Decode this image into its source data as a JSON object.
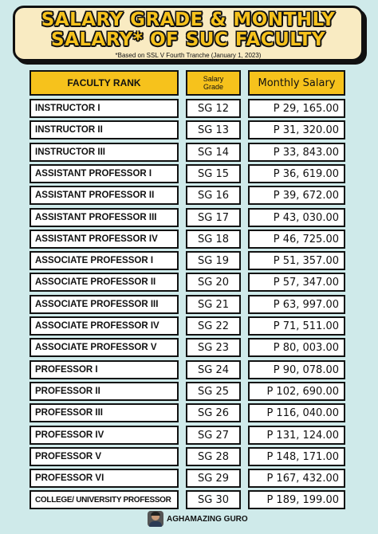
{
  "banner": {
    "title_line1": "SALARY GRADE & MONTHLY",
    "title_line2": "SALARY* OF SUC FACULTY",
    "note": "*Based on SSL V Fourth Tranche (January 1, 2023)"
  },
  "table": {
    "headers": {
      "rank": "FACULTY RANK",
      "grade_line1": "Salary",
      "grade_line2": "Grade",
      "salary": "Monthly Salary"
    },
    "rows": [
      {
        "rank": "INSTRUCTOR I",
        "grade": "SG 12",
        "salary": "P 29, 165.00"
      },
      {
        "rank": "INSTRUCTOR II",
        "grade": "SG 13",
        "salary": "P 31, 320.00"
      },
      {
        "rank": "INSTRUCTOR III",
        "grade": "SG 14",
        "salary": "P 33, 843.00"
      },
      {
        "rank": "ASSISTANT PROFESSOR I",
        "grade": "SG 15",
        "salary": "P 36, 619.00"
      },
      {
        "rank": "ASSISTANT PROFESSOR II",
        "grade": "SG 16",
        "salary": "P 39, 672.00"
      },
      {
        "rank": "ASSISTANT PROFESSOR III",
        "grade": "SG 17",
        "salary": "P 43, 030.00"
      },
      {
        "rank": "ASSISTANT PROFESSOR IV",
        "grade": "SG 18",
        "salary": "P 46, 725.00"
      },
      {
        "rank": "ASSOCIATE PROFESSOR I",
        "grade": "SG 19",
        "salary": "P 51, 357.00"
      },
      {
        "rank": "ASSOCIATE PROFESSOR II",
        "grade": "SG 20",
        "salary": "P 57, 347.00"
      },
      {
        "rank": "ASSOCIATE PROFESSOR III",
        "grade": "SG 21",
        "salary": "P 63, 997.00"
      },
      {
        "rank": "ASSOCIATE PROFESSOR IV",
        "grade": "SG 22",
        "salary": "P 71, 511.00"
      },
      {
        "rank": "ASSOCIATE PROFESSOR V",
        "grade": "SG 23",
        "salary": "P 80, 003.00"
      },
      {
        "rank": "PROFESSOR I",
        "grade": "SG 24",
        "salary": "P 90, 078.00"
      },
      {
        "rank": "PROFESSOR II",
        "grade": "SG 25",
        "salary": "P 102, 690.00"
      },
      {
        "rank": "PROFESSOR III",
        "grade": "SG 26",
        "salary": "P 116, 040.00"
      },
      {
        "rank": "PROFESSOR IV",
        "grade": "SG 27",
        "salary": "P 131, 124.00"
      },
      {
        "rank": "PROFESSOR V",
        "grade": "SG 28",
        "salary": "P 148, 171.00"
      },
      {
        "rank": "PROFESSOR VI",
        "grade": "SG 29",
        "salary": "P 167, 432.00"
      },
      {
        "rank": "COLLEGE/ UNIVERSITY PROFESSOR",
        "grade": "SG 30",
        "salary": "P 189, 199.00"
      }
    ]
  },
  "footer": {
    "brand": "AGHAMAZING GURO",
    "avatar_icon": "person-avatar-icon"
  },
  "colors": {
    "background": "#cfeaea",
    "accent": "#f6c21c",
    "banner_bg": "#f9ebc2"
  }
}
